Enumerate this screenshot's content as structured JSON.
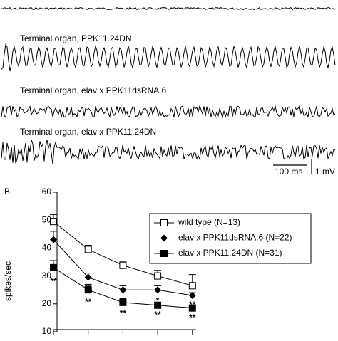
{
  "traces": [
    {
      "label": "Terminal organ, PPK11.24DN"
    },
    {
      "label": "Terminal organ, elav x PPK11dsRNA.6"
    },
    {
      "label": "Terminal organ, elav x PPK11.24DN"
    }
  ],
  "scale_bar": {
    "time": "100 ms",
    "voltage": "1 mV"
  },
  "chart_data": {
    "type": "line",
    "panel_label": "B.",
    "y_label": "spikes/sec",
    "categories": [
      null,
      null,
      null,
      null,
      null
    ],
    "ylim": [
      10,
      60
    ],
    "yticks": [
      10,
      20,
      30,
      40,
      50,
      60
    ],
    "series": [
      {
        "name": "wild type (N=13)",
        "color": "#000000",
        "marker": "open-square",
        "values": [
          49.5,
          39.5,
          33.8,
          30,
          26.5
        ],
        "errors": [
          2.5,
          1.5,
          1.5,
          2,
          4
        ],
        "significance": [
          null,
          null,
          null,
          null,
          null
        ]
      },
      {
        "name": "elav x PPK11dsRNA.6 (N=22)",
        "color": "#000000",
        "marker": "diamond",
        "values": [
          43,
          29.5,
          25,
          25,
          23
        ],
        "errors": [
          3,
          1.5,
          1.5,
          1.5,
          1
        ],
        "significance": [
          null,
          "**",
          "**",
          "*",
          "**"
        ]
      },
      {
        "name": "elav x PPK11.24DN (N=31)",
        "color": "#000000",
        "marker": "square",
        "values": [
          33,
          25,
          20.5,
          19.5,
          18.5
        ],
        "errors": [
          2.5,
          2,
          1.5,
          1,
          1
        ],
        "significance": [
          "**",
          "**",
          "**",
          "**",
          "**"
        ]
      }
    ]
  }
}
